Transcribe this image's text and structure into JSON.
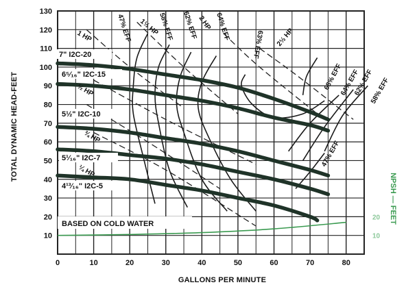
{
  "chart_data": {
    "type": "line",
    "xlabel": "GALLONS PER MINUTE",
    "ylabel": "TOTAL DYNAMIC HEAD-FEET",
    "xlim": [
      0,
      85
    ],
    "ylim": [
      0,
      130
    ],
    "xticks": [
      "0",
      "10",
      "20",
      "30",
      "40",
      "50",
      "60",
      "70",
      "80"
    ],
    "yticks": [
      "10",
      "20",
      "30",
      "40",
      "50",
      "60",
      "70",
      "80",
      "90",
      "100",
      "110",
      "120",
      "130"
    ],
    "grid": true,
    "note": "BASED ON COLD WATER",
    "head_curves": [
      {
        "name": "7\" I2C-20",
        "x": [
          0,
          10,
          20,
          30,
          40,
          50,
          60,
          70,
          75
        ],
        "y": [
          102,
          101,
          99,
          96,
          93,
          89,
          83,
          76,
          72
        ]
      },
      {
        "name": "6⁵⁄₁₆\" I2C-15",
        "x": [
          0,
          10,
          20,
          30,
          40,
          50,
          60,
          70,
          75
        ],
        "y": [
          91,
          90,
          88,
          85,
          82,
          78,
          73,
          69,
          66
        ]
      },
      {
        "name": "5½\" I2C-10",
        "x": [
          0,
          10,
          20,
          30,
          40,
          50,
          60,
          70,
          75
        ],
        "y": [
          68,
          67,
          65,
          62,
          59,
          55,
          50,
          45,
          42
        ]
      },
      {
        "name": "5¹⁄₁₆\" I2C-7",
        "x": [
          0,
          10,
          20,
          30,
          40,
          50,
          60,
          70,
          75
        ],
        "y": [
          56,
          55,
          53,
          51,
          48,
          44,
          40,
          35,
          32
        ]
      },
      {
        "name": "4¹³⁄₁₆\" I2C-5",
        "x": [
          0,
          10,
          20,
          30,
          40,
          50,
          60,
          70,
          72
        ],
        "y": [
          42,
          41,
          40,
          37,
          34,
          30,
          26,
          20,
          18
        ]
      }
    ],
    "efficiency_curves": [
      {
        "name": "47% EFF",
        "x": [
          25,
          22,
          21,
          21,
          24,
          27
        ],
        "y": [
          118,
          105,
          90,
          75,
          50,
          27
        ]
      },
      {
        "name": "58% EFF",
        "x": [
          31,
          28,
          27,
          28,
          31,
          36
        ],
        "y": [
          112,
          100,
          85,
          70,
          45,
          25
        ]
      },
      {
        "name": "62% EFF",
        "x": [
          37,
          34,
          33,
          35,
          40,
          47
        ],
        "y": [
          108,
          95,
          80,
          65,
          40,
          23
        ]
      },
      {
        "name": "64% EFF",
        "x": [
          44,
          40,
          39,
          42,
          48,
          55
        ],
        "y": [
          106,
          92,
          78,
          62,
          40,
          23
        ]
      },
      {
        "name": "63% EFF",
        "x": [
          52,
          51,
          54,
          60,
          68,
          74
        ],
        "y": [
          96,
          90,
          80,
          73,
          75,
          82
        ]
      },
      {
        "name": "68% EFF",
        "x": [
          68,
          69,
          72
        ],
        "y": [
          85,
          95,
          105
        ]
      },
      {
        "name": "64% EFF",
        "x": [
          64,
          70,
          78
        ],
        "y": [
          55,
          70,
          85
        ]
      },
      {
        "name": "62% EFF",
        "x": [
          68,
          74,
          82
        ],
        "y": [
          50,
          68,
          88
        ]
      },
      {
        "name": "58% EFF",
        "x": [
          74,
          79,
          86
        ],
        "y": [
          55,
          74,
          90
        ]
      },
      {
        "name": "47% EFF",
        "x": [
          66,
          70,
          74
        ],
        "y": [
          35,
          44,
          54
        ]
      }
    ],
    "power_lines": [
      {
        "name": "1 HP",
        "x": [
          8,
          20,
          35
        ],
        "y": [
          120,
          100,
          78
        ]
      },
      {
        "name": "1½ HP",
        "x": [
          22,
          35,
          50
        ],
        "y": [
          124,
          100,
          75
        ]
      },
      {
        "name": "2 HP",
        "x": [
          46,
          56,
          72
        ],
        "y": [
          118,
          100,
          75
        ]
      },
      {
        "name": "2½ HP",
        "x": [
          56,
          66,
          82
        ],
        "y": [
          110,
          96,
          72
        ]
      },
      {
        "name": "½ HP",
        "x": [
          8,
          25,
          45
        ],
        "y": [
          80,
          60,
          35
        ]
      },
      {
        "name": "¾ HP",
        "x": [
          10,
          30,
          55
        ],
        "y": [
          93,
          72,
          48
        ]
      },
      {
        "name": "¼ HP",
        "x": [
          10,
          30,
          55
        ],
        "y": [
          65,
          45,
          15
        ]
      }
    ],
    "npsh": {
      "name": "NPSH — FEET",
      "x": [
        0,
        20,
        40,
        60,
        80
      ],
      "y": [
        10,
        10.5,
        11.5,
        13.5,
        17
      ],
      "axis_ticks": [
        "10",
        "20"
      ]
    }
  },
  "colors": {
    "curve": "#1f3328",
    "grid": "#222222",
    "npsh": "#3a9a50"
  },
  "labels": {
    "c1": "7\" I2C-20",
    "c2": "6⁵⁄₁₆\" I2C-15",
    "c3": "5½\" I2C-10",
    "c4": "5¹⁄₁₆\" I2C-7",
    "c5": "4¹³⁄₁₆\" I2C-5",
    "e1": "47% EFF",
    "e2": "58% EFF",
    "e3": "62% EFF",
    "e4": "64% EFF",
    "e5": "63% EFF",
    "e6": "68% EFF",
    "e7": "64% EFF",
    "e8": "62% EFF",
    "e9": "58% EFF",
    "e10": "47% EFF",
    "h1": "1 HP",
    "h2": "1½ HP",
    "h3": "2 HP",
    "h4": "2½ HP",
    "h5": "½ HP",
    "h6": "¾ HP",
    "h7": "¼ HP"
  }
}
